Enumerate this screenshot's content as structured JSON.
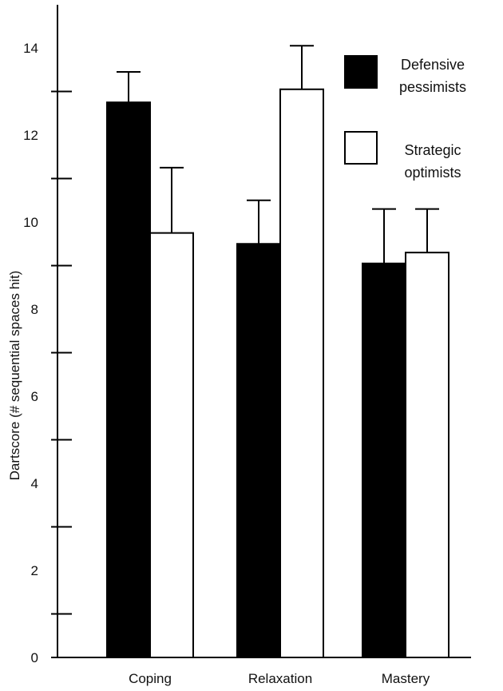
{
  "chart_data": {
    "type": "bar",
    "title": "",
    "xlabel": "",
    "ylabel": "Dartscore (# sequential spaces hit)",
    "ylim": [
      0,
      15
    ],
    "yticks_labeled": [
      0,
      2,
      4,
      6,
      8,
      10,
      12,
      14
    ],
    "yticks_minor": [
      1,
      3,
      5,
      7,
      9,
      11,
      13
    ],
    "categories": [
      "Coping",
      "Relaxation",
      "Mastery"
    ],
    "legend_position": "top-right",
    "grid": false,
    "series": [
      {
        "name": "Defensive pessimists",
        "line1": "Defensive",
        "line2": "pessimists",
        "color": "#000000",
        "values": [
          12.75,
          9.5,
          9.05
        ],
        "error": [
          0.7,
          1.0,
          1.25
        ]
      },
      {
        "name": "Strategic optimists",
        "line1": "Strategic",
        "line2": "optimists",
        "color": "#ffffff",
        "values": [
          9.75,
          13.05,
          9.3
        ],
        "error": [
          1.5,
          1.0,
          1.0
        ]
      }
    ]
  }
}
